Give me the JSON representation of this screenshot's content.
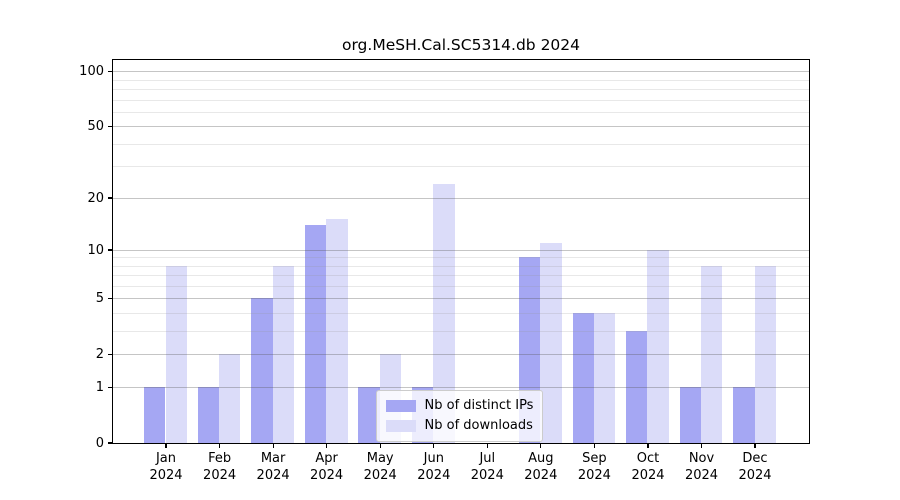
{
  "title": "org.MeSH.Cal.SC5314.db 2024",
  "chart_data": {
    "type": "bar",
    "title": "org.MeSH.Cal.SC5314.db 2024",
    "categories": [
      "Jan",
      "Feb",
      "Mar",
      "Apr",
      "May",
      "Jun",
      "Jul",
      "Aug",
      "Sep",
      "Oct",
      "Nov",
      "Dec"
    ],
    "x_sub_label": "2024",
    "series": [
      {
        "name": "Nb of distinct IPs",
        "color": "#a5a7f3",
        "values": [
          1,
          1,
          5,
          14,
          1,
          1,
          0,
          9,
          4,
          3,
          1,
          1
        ]
      },
      {
        "name": "Nb of downloads",
        "color": "#dbdcf9",
        "values": [
          8,
          2,
          8,
          15,
          2,
          24,
          0,
          11,
          4,
          10,
          8,
          8
        ]
      }
    ],
    "y_scale": "log10(value+1)",
    "y_ticks": [
      0,
      1,
      2,
      5,
      10,
      20,
      50,
      100
    ],
    "y_minor_gridlines": [
      3,
      4,
      6,
      7,
      8,
      9,
      30,
      40,
      60,
      70,
      80,
      90
    ],
    "ylim": [
      0,
      116
    ],
    "xlabel": "",
    "ylabel": "",
    "grid": "on, drawn over bars",
    "legend_position": "lower center"
  },
  "legend": {
    "items": [
      {
        "label": "Nb of distinct IPs",
        "color": "#a5a7f3"
      },
      {
        "label": "Nb of downloads",
        "color": "#dbdcf9"
      }
    ]
  },
  "colors": {
    "background": "#ffffff",
    "spine": "#000000",
    "bar_distinct_ips": "#a5a7f3",
    "bar_downloads": "#dbdcf9",
    "gridline_major": "#c6c6c6",
    "gridline_minor": "#e9e9e9",
    "legend_border": "#cccccc"
  }
}
